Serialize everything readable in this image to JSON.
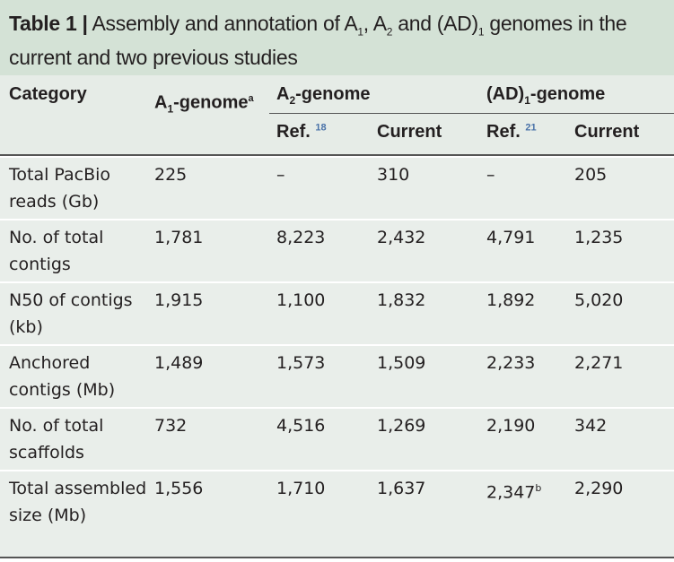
{
  "title": {
    "label": "Table 1 |",
    "text_parts": [
      "Assembly and annotation of A",
      "1",
      ", A",
      "2",
      " and (AD)",
      "1",
      " genomes in the current and two previous studies"
    ]
  },
  "header": {
    "category": "Category",
    "a1": "A",
    "a1_sub": "1",
    "a1_rest": "-genome",
    "a1_sup": "a",
    "a2": "A",
    "a2_sub": "2",
    "a2_rest": "-genome",
    "ad": "(AD)",
    "ad_sub": "1",
    "ad_rest": "-genome",
    "ref": "Ref.",
    "ref18": "18",
    "ref21": "21",
    "current": "Current"
  },
  "rows": [
    {
      "category": "Total PacBio reads (Gb)",
      "a1": "225",
      "a2_ref": "–",
      "a2_cur": "310",
      "ad_ref": "–",
      "ad_cur": "205"
    },
    {
      "category": "No. of total contigs",
      "a1": "1,781",
      "a2_ref": "8,223",
      "a2_cur": "2,432",
      "ad_ref": "4,791",
      "ad_cur": "1,235"
    },
    {
      "category": "N50 of contigs (kb)",
      "a1": "1,915",
      "a2_ref": "1,100",
      "a2_cur": "1,832",
      "ad_ref": "1,892",
      "ad_cur": "5,020"
    },
    {
      "category": "Anchored contigs (Mb)",
      "a1": "1,489",
      "a2_ref": "1,573",
      "a2_cur": "1,509",
      "ad_ref": "2,233",
      "ad_cur": "2,271"
    },
    {
      "category": "No. of total scaffolds",
      "a1": "732",
      "a2_ref": "4,516",
      "a2_cur": "1,269",
      "ad_ref": "2,190",
      "ad_cur": "342"
    },
    {
      "category": "Total assembled size (Mb)",
      "a1": "1,556",
      "a2_ref": "1,710",
      "a2_cur": "1,637",
      "ad_ref": "2,347",
      "ad_ref_sup": "b",
      "ad_cur": "2,290"
    }
  ]
}
